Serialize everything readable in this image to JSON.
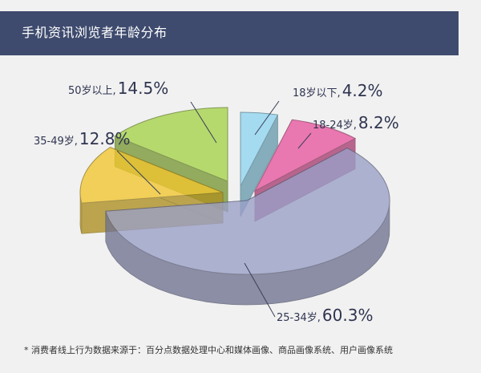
{
  "header": {
    "title": "手机资讯浏览者年龄分布"
  },
  "chart_data": {
    "type": "pie",
    "title": "手机资讯浏览者年龄分布",
    "slices": [
      {
        "label": "18岁以下,",
        "value": 4.2,
        "value_label": "4.2%",
        "color": "#8fd6f0"
      },
      {
        "label": "18-24岁,",
        "value": 8.2,
        "value_label": "8.2%",
        "color": "#e8569e"
      },
      {
        "label": "25-34岁,",
        "value": 60.3,
        "value_label": "60.3%",
        "color": "#9aa0c8"
      },
      {
        "label": "35-49岁,",
        "value": 12.8,
        "value_label": "12.8%",
        "color": "#f2c62e"
      },
      {
        "label": "50岁以上,",
        "value": 14.5,
        "value_label": "14.5%",
        "color": "#a6d349"
      }
    ]
  },
  "footnote": "* 消费者线上行为数据来源于：百分点数据处理中心和媒体画像、商品画像系统、用户画像系统"
}
